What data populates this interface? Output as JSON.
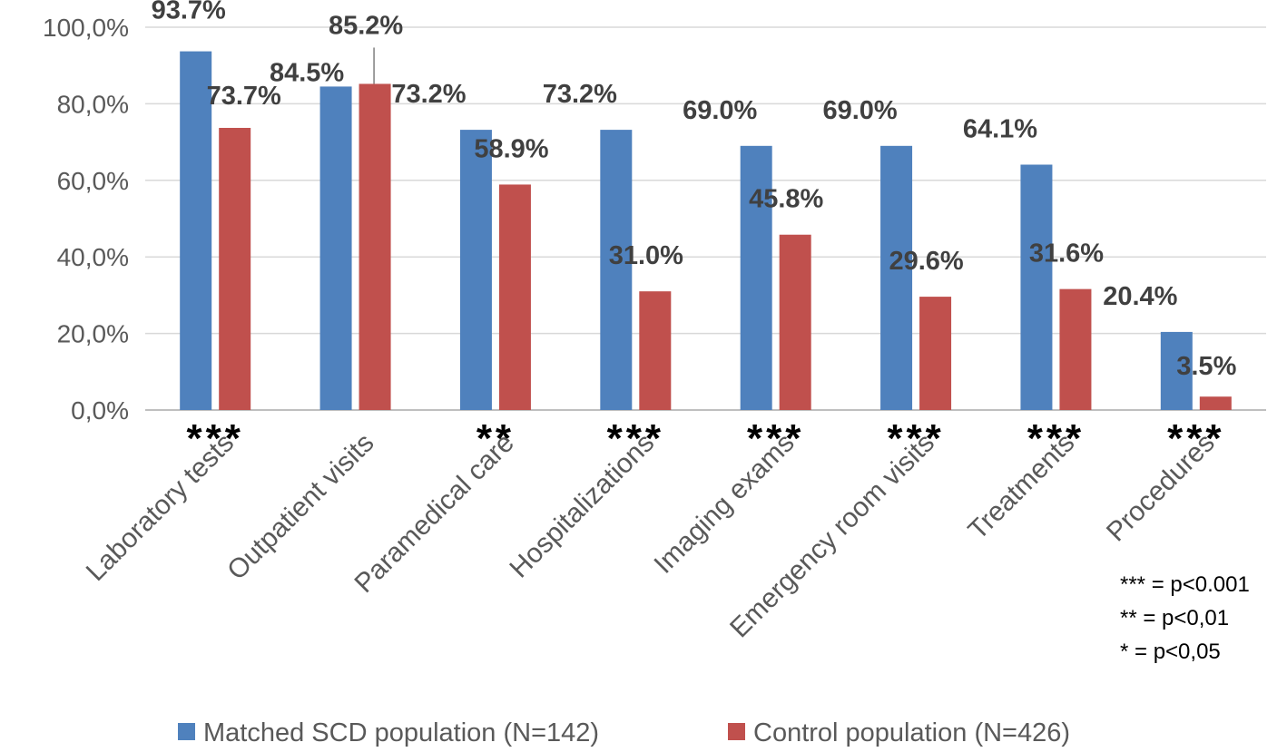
{
  "chart_data": {
    "type": "bar",
    "title": "",
    "xlabel": "",
    "ylabel": "",
    "ylim": [
      0,
      100
    ],
    "y_ticks": [
      "0,0%",
      "20,0%",
      "40,0%",
      "60,0%",
      "80,0%",
      "100,0%"
    ],
    "grid": true,
    "legend_position": "bottom",
    "categories": [
      "Laboratory tests",
      "Outpatient visits",
      "Paramedical care",
      "Hospitalizations",
      "Imaging exams",
      "Emergency room visits",
      "Treatments",
      "Procedures"
    ],
    "series": [
      {
        "name": "Matched SCD population (N=142)",
        "color": "#4f81bd",
        "values": [
          93.7,
          84.5,
          73.2,
          73.2,
          69.0,
          69.0,
          64.1,
          20.4
        ],
        "labels": [
          "93.7%",
          "84.5%",
          "73.2%",
          "73.2%",
          "69.0%",
          "69.0%",
          "64.1%",
          "20.4%"
        ]
      },
      {
        "name": "Control population (N=426)",
        "color": "#c0504d",
        "values": [
          73.7,
          85.2,
          58.9,
          31.0,
          45.8,
          29.6,
          31.6,
          3.5
        ],
        "labels": [
          "73.7%",
          "85.2%",
          "58.9%",
          "31.0%",
          "45.8%",
          "29.6%",
          "31.6%",
          "3.5%"
        ]
      }
    ],
    "significance": [
      "***",
      "",
      "**",
      "***",
      "***",
      "***",
      "***",
      "***"
    ],
    "significance_key": [
      "*** = p<0.001",
      "** = p<0,01",
      "* = p<0,05"
    ]
  }
}
